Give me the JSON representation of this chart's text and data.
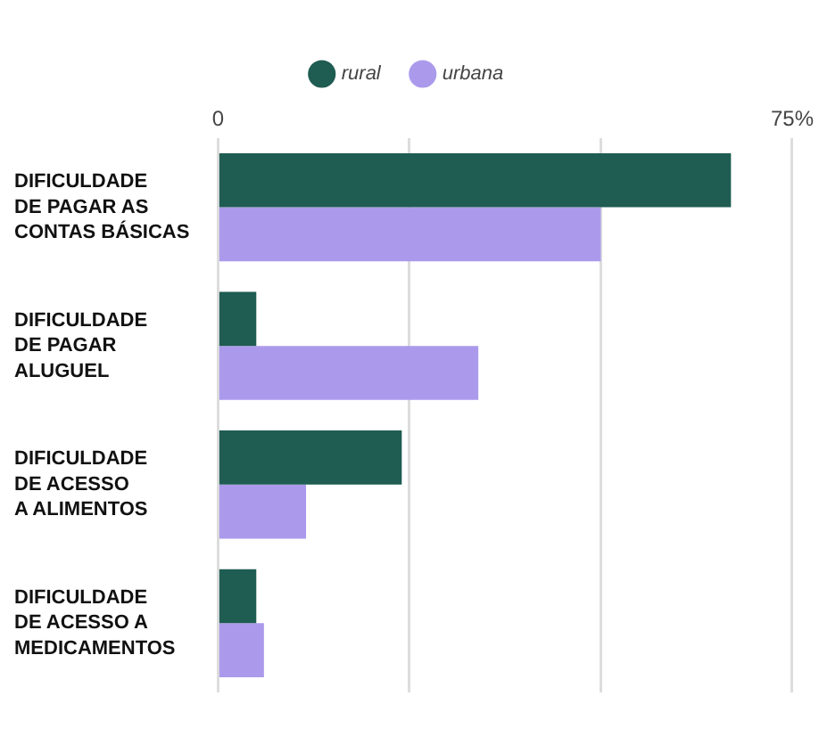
{
  "chart_data": {
    "type": "bar",
    "orientation": "horizontal",
    "categories": [
      "DIFICULDADE\nDE PAGAR AS\nCONTAS BÁSICAS",
      "DIFICULDADE\nDE PAGAR\nALUGUEL",
      "DIFICULDADE\nDE ACESSO\nA ALIMENTOS",
      "DIFICULDADE\nDE ACESSO A\nMEDICAMENTOS"
    ],
    "series": [
      {
        "name": "rural",
        "color": "#1f5c52",
        "values": [
          67,
          5,
          24,
          5
        ]
      },
      {
        "name": "urbana",
        "color": "#ab9aec",
        "values": [
          50,
          34,
          11.5,
          6
        ]
      }
    ],
    "xlim": [
      0,
      75
    ],
    "xticks": [
      0,
      {
        "value": 25,
        "label": null
      },
      {
        "value": 50,
        "label": null
      },
      {
        "value": 75,
        "label": "75%"
      }
    ],
    "grid": "x",
    "legend": "top"
  }
}
